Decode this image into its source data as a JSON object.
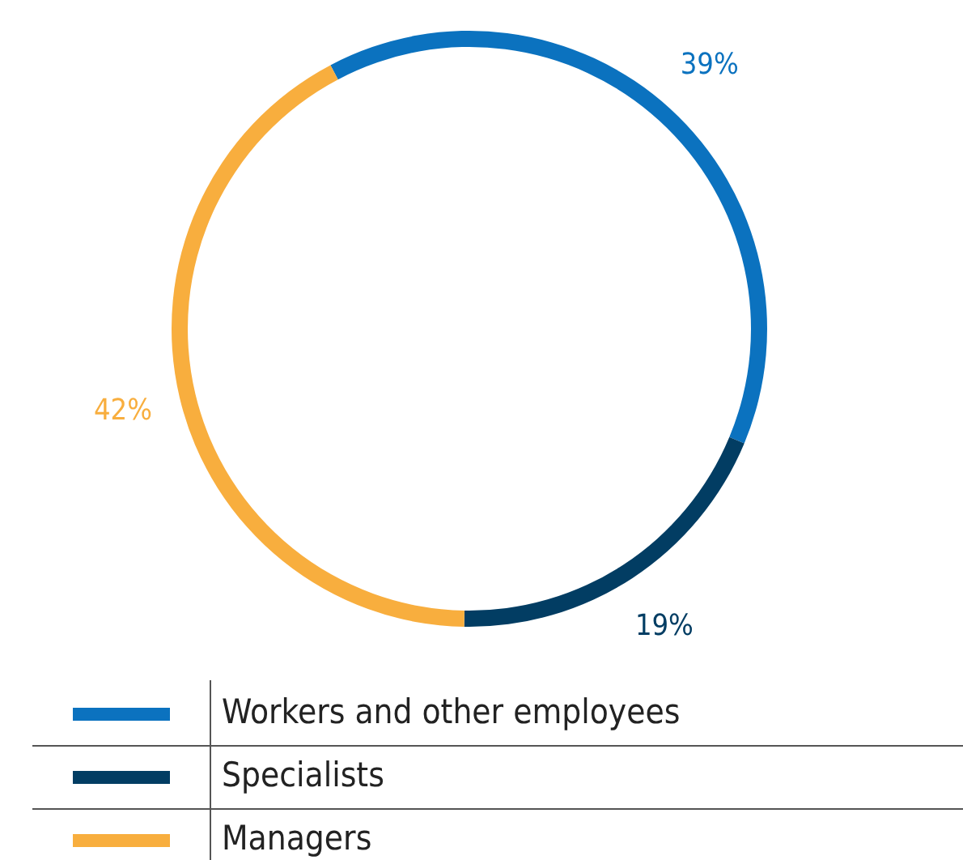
{
  "chart_data": {
    "type": "donut",
    "categories": [
      "Workers and other employees",
      "Specialists",
      "Managers"
    ],
    "values": [
      39,
      19,
      42
    ],
    "colors": [
      "#0b72bf",
      "#023d63",
      "#f8ae3e"
    ],
    "value_labels": [
      "39%",
      "19%",
      "42%"
    ],
    "legend": "bottom"
  }
}
